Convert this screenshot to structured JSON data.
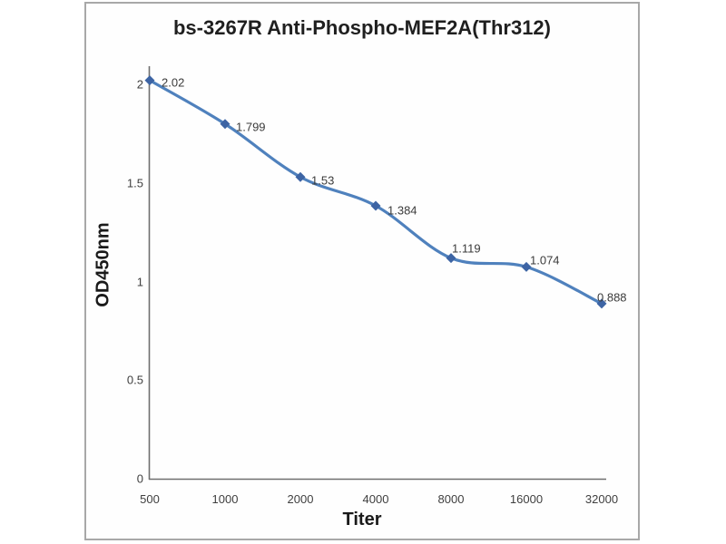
{
  "window": {
    "background_color": "#ffffff",
    "frame_border_color": "#a8a8a8"
  },
  "chart_data": {
    "type": "line",
    "title": "bs-3267R Anti-Phospho-MEF2A(Thr312)",
    "xlabel": "Titer",
    "ylabel": "OD450nm",
    "categories": [
      "500",
      "1000",
      "2000",
      "4000",
      "8000",
      "16000",
      "32000"
    ],
    "series": [
      {
        "name": "OD450nm",
        "values": [
          2.02,
          1.799,
          1.53,
          1.384,
          1.119,
          1.074,
          0.888
        ]
      }
    ],
    "point_labels": [
      "2.02",
      "1.799",
      "1.53",
      "1.384",
      "1.119",
      "1.074",
      "0.888"
    ],
    "y_ticks": [
      "0",
      "0.5",
      "1",
      "1.5",
      "2"
    ],
    "ylim": [
      0,
      2.09
    ],
    "grid": false,
    "legend": "none",
    "line_color": "#4f81bd",
    "marker_color": "#3d64a4",
    "marker_shape": "diamond",
    "axis_color": "#6e6e6e",
    "smoothed": true
  }
}
